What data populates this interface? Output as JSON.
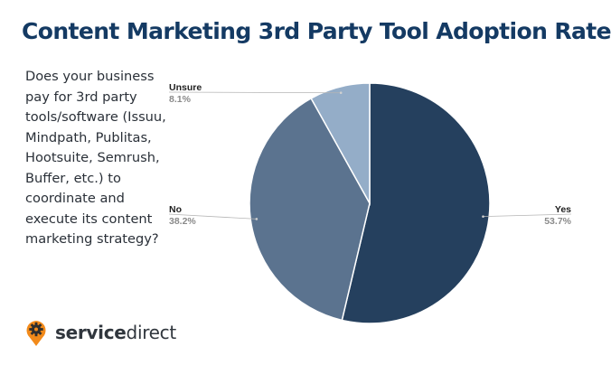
{
  "title": "Content Marketing 3rd Party Tool Adoption Rate",
  "question": "Does your business pay for 3rd party tools/software (Issuu, Mindpath, Publitas, Hootsuite, Semrush, Buffer, etc.) to coordinate and execute its content marketing strategy?",
  "logo": {
    "brand_bold": "service",
    "brand_rest": "direct",
    "icon": "gear-location-pin-icon"
  },
  "chart_data": {
    "type": "pie",
    "title": "",
    "slices": [
      {
        "label": "Yes",
        "value": 53.7,
        "display": "53.7%",
        "color": "#25405e"
      },
      {
        "label": "No",
        "value": 38.2,
        "display": "38.2%",
        "color": "#5b738f"
      },
      {
        "label": "Unsure",
        "value": 8.1,
        "display": "8.1%",
        "color": "#94adc8"
      }
    ],
    "start_angle_deg": 0,
    "direction": "clockwise",
    "labels": "outside-with-leader-lines"
  }
}
